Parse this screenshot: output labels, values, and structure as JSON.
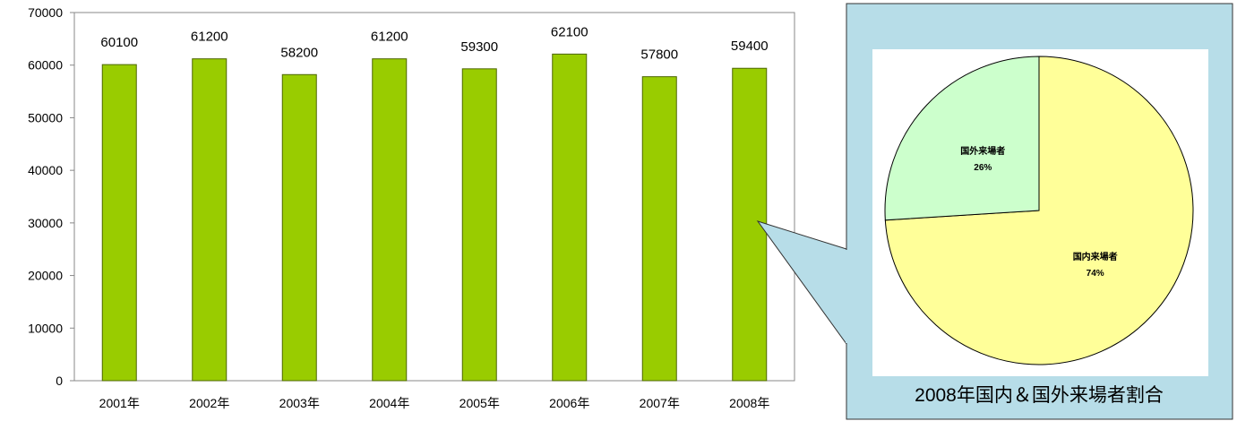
{
  "chart_data": [
    {
      "type": "bar",
      "title": "",
      "xlabel": "",
      "ylabel": "",
      "categories": [
        "2001年",
        "2002年",
        "2003年",
        "2004年",
        "2005年",
        "2006年",
        "2007年",
        "2008年"
      ],
      "values": [
        60100,
        61200,
        58200,
        61200,
        59300,
        62100,
        57800,
        59400
      ],
      "data_labels": [
        "60100",
        "61200",
        "58200",
        "61200",
        "59300",
        "62100",
        "57800",
        "59400"
      ],
      "ylim": [
        0,
        70000
      ],
      "yticks": [
        0,
        10000,
        20000,
        30000,
        40000,
        50000,
        60000,
        70000
      ],
      "grid": false,
      "bar_color": "#99cc00",
      "plot_background": "#ffffff"
    },
    {
      "type": "pie",
      "title": "2008年国内＆国外来場者割合",
      "slices": [
        {
          "name": "国内来場者",
          "value": 74,
          "label": "74%",
          "color": "#ffff99"
        },
        {
          "name": "国外来場者",
          "value": 26,
          "label": "26%",
          "color": "#ccffcc"
        }
      ],
      "panel_background": "#b7dde8"
    }
  ]
}
